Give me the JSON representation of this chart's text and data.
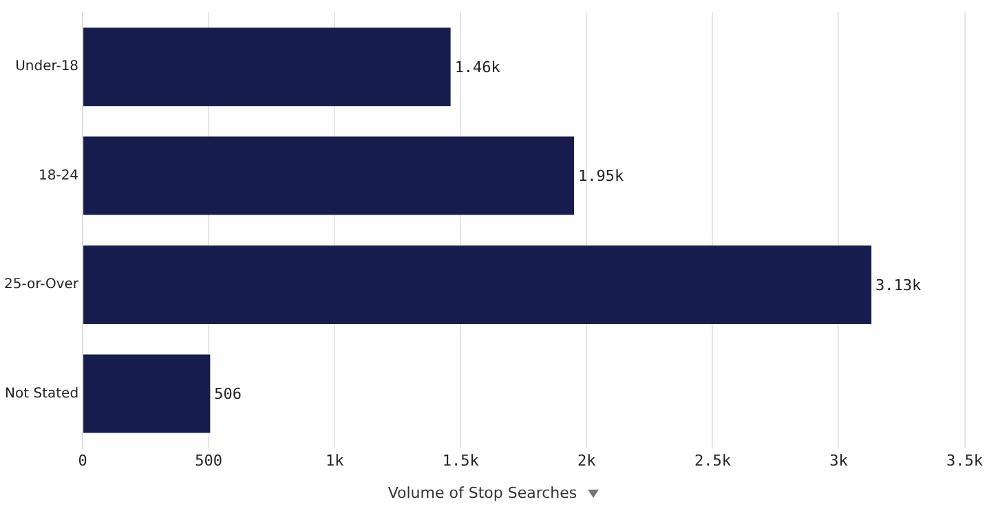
{
  "chart_data": {
    "type": "bar",
    "orientation": "horizontal",
    "xlabel": "Volume of Stop Searches",
    "categories": [
      "Under-18",
      "18-24",
      "25-or-Over",
      "Not Stated"
    ],
    "values": [
      1460,
      1950,
      3130,
      506
    ],
    "value_labels": [
      "1.46k",
      "1.95k",
      "3.13k",
      "506"
    ],
    "color": "#161c4e",
    "xlim": [
      0,
      3500
    ],
    "xticks": [
      0,
      {
        "value": 500,
        "label": "500"
      },
      {
        "value": 1000,
        "label": "1k"
      },
      {
        "value": 1500,
        "label": "1.5k"
      },
      {
        "value": 2000,
        "label": "2k"
      },
      {
        "value": 2500,
        "label": "2.5k"
      },
      {
        "value": 3000,
        "label": "3k"
      },
      {
        "value": 3500,
        "label": "3.5k"
      }
    ],
    "grid": "x",
    "legend": false
  }
}
